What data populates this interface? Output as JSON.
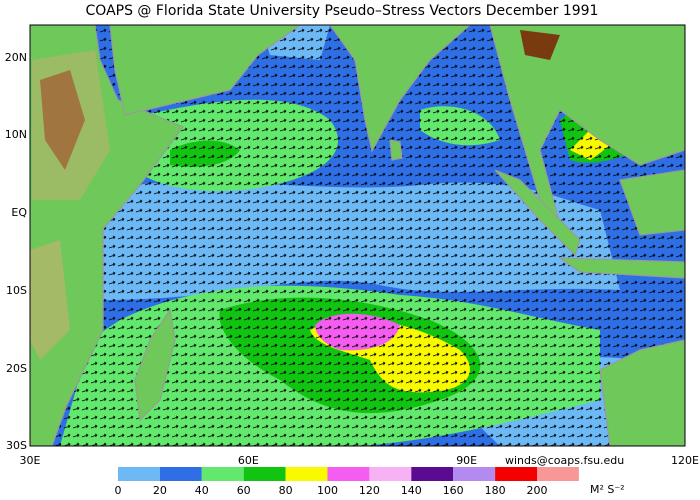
{
  "title": "COAPS @ Florida State University Pseudo–Stress Vectors  December 1991",
  "lat_labels": [
    "20N",
    "10N",
    "EQ",
    "10S",
    "20S",
    "30S"
  ],
  "lon_labels": [
    "30E",
    "60E",
    "90E",
    "120E"
  ],
  "credit": "winds@coaps.fsu.edu",
  "legend": {
    "colors": [
      "#6cb9f5",
      "#2e6fe6",
      "#62e86c",
      "#11c411",
      "#f9f900",
      "#f55cf0",
      "#f6b2f2",
      "#5a0b92",
      "#b38af0",
      "#f50000",
      "#f79797"
    ],
    "ticks": [
      0,
      20,
      40,
      60,
      80,
      100,
      120,
      140,
      160,
      180,
      200
    ],
    "unit": "M² S⁻²"
  }
}
